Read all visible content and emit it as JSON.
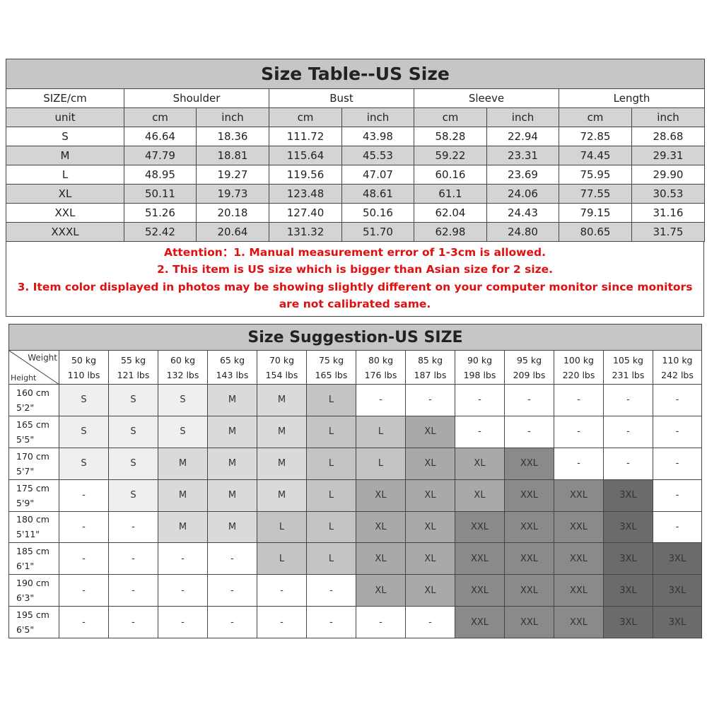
{
  "size_table": {
    "title": "Size Table--US Size",
    "header": [
      "SIZE/cm",
      "Shoulder",
      "Bust",
      "Sleeve",
      "Length"
    ],
    "units": [
      "unit",
      "cm",
      "inch",
      "cm",
      "inch",
      "cm",
      "inch",
      "cm",
      "inch"
    ],
    "rows": [
      [
        "S",
        "46.64",
        "18.36",
        "111.72",
        "43.98",
        "58.28",
        "22.94",
        "72.85",
        "28.68"
      ],
      [
        "M",
        "47.79",
        "18.81",
        "115.64",
        "45.53",
        "59.22",
        "23.31",
        "74.45",
        "29.31"
      ],
      [
        "L",
        "48.95",
        "19.27",
        "119.56",
        "47.07",
        "60.16",
        "23.69",
        "75.95",
        "29.90"
      ],
      [
        "XL",
        "50.11",
        "19.73",
        "123.48",
        "48.61",
        "61.1",
        "24.06",
        "77.55",
        "30.53"
      ],
      [
        "XXL",
        "51.26",
        "20.18",
        "127.40",
        "50.16",
        "62.04",
        "24.43",
        "79.15",
        "31.16"
      ],
      [
        "XXXL",
        "52.42",
        "20.64",
        "131.32",
        "51.70",
        "62.98",
        "24.80",
        "80.65",
        "31.75"
      ]
    ]
  },
  "attention": [
    "Attention：1. Manual measurement error of 1-3cm is allowed.",
    "2. This item is US size which is bigger than Asian size for 2 size.",
    "3. Item color displayed in photos may be showing slightly different on your computer monitor since monitors are not calibrated same."
  ],
  "suggestion": {
    "title": "Size Suggestion-US SIZE",
    "corner_top": "Weight",
    "corner_bottom": "Height",
    "weights": [
      {
        "kg": "50 kg",
        "lbs": "110 lbs"
      },
      {
        "kg": "55 kg",
        "lbs": "121 lbs"
      },
      {
        "kg": "60 kg",
        "lbs": "132 lbs"
      },
      {
        "kg": "65 kg",
        "lbs": "143 lbs"
      },
      {
        "kg": "70 kg",
        "lbs": "154 lbs"
      },
      {
        "kg": "75 kg",
        "lbs": "165 lbs"
      },
      {
        "kg": "80 kg",
        "lbs": "176 lbs"
      },
      {
        "kg": "85 kg",
        "lbs": "187 lbs"
      },
      {
        "kg": "90 kg",
        "lbs": "198 lbs"
      },
      {
        "kg": "95 kg",
        "lbs": "209 lbs"
      },
      {
        "kg": "100 kg",
        "lbs": "220 lbs"
      },
      {
        "kg": "105 kg",
        "lbs": "231 lbs"
      },
      {
        "kg": "110 kg",
        "lbs": "242 lbs"
      }
    ],
    "rows": [
      {
        "cm": "160 cm",
        "ft": "5'2\"",
        "sizes": [
          "S",
          "S",
          "S",
          "M",
          "M",
          "L",
          "-",
          "-",
          "-",
          "-",
          "-",
          "-",
          "-"
        ]
      },
      {
        "cm": "165 cm",
        "ft": "5'5\"",
        "sizes": [
          "S",
          "S",
          "S",
          "M",
          "M",
          "L",
          "L",
          "XL",
          "-",
          "-",
          "-",
          "-",
          "-"
        ]
      },
      {
        "cm": "170 cm",
        "ft": "5'7\"",
        "sizes": [
          "S",
          "S",
          "M",
          "M",
          "M",
          "L",
          "L",
          "XL",
          "XL",
          "XXL",
          "-",
          "-",
          "-"
        ]
      },
      {
        "cm": "175 cm",
        "ft": "5'9\"",
        "sizes": [
          "-",
          "S",
          "M",
          "M",
          "M",
          "L",
          "XL",
          "XL",
          "XL",
          "XXL",
          "XXL",
          "3XL",
          "-"
        ]
      },
      {
        "cm": "180 cm",
        "ft": "5'11\"",
        "sizes": [
          "-",
          "-",
          "M",
          "M",
          "L",
          "L",
          "XL",
          "XL",
          "XXL",
          "XXL",
          "XXL",
          "3XL",
          "-"
        ]
      },
      {
        "cm": "185 cm",
        "ft": "6'1\"",
        "sizes": [
          "-",
          "-",
          "-",
          "-",
          "L",
          "L",
          "XL",
          "XL",
          "XXL",
          "XXL",
          "XXL",
          "3XL",
          "3XL"
        ]
      },
      {
        "cm": "190 cm",
        "ft": "6'3\"",
        "sizes": [
          "-",
          "-",
          "-",
          "-",
          "-",
          "-",
          "XL",
          "XL",
          "XXL",
          "XXL",
          "XXL",
          "3XL",
          "3XL"
        ]
      },
      {
        "cm": "195 cm",
        "ft": "6'5\"",
        "sizes": [
          "-",
          "-",
          "-",
          "-",
          "-",
          "-",
          "-",
          "-",
          "XXL",
          "XXL",
          "XXL",
          "3XL",
          "3XL"
        ]
      }
    ]
  }
}
